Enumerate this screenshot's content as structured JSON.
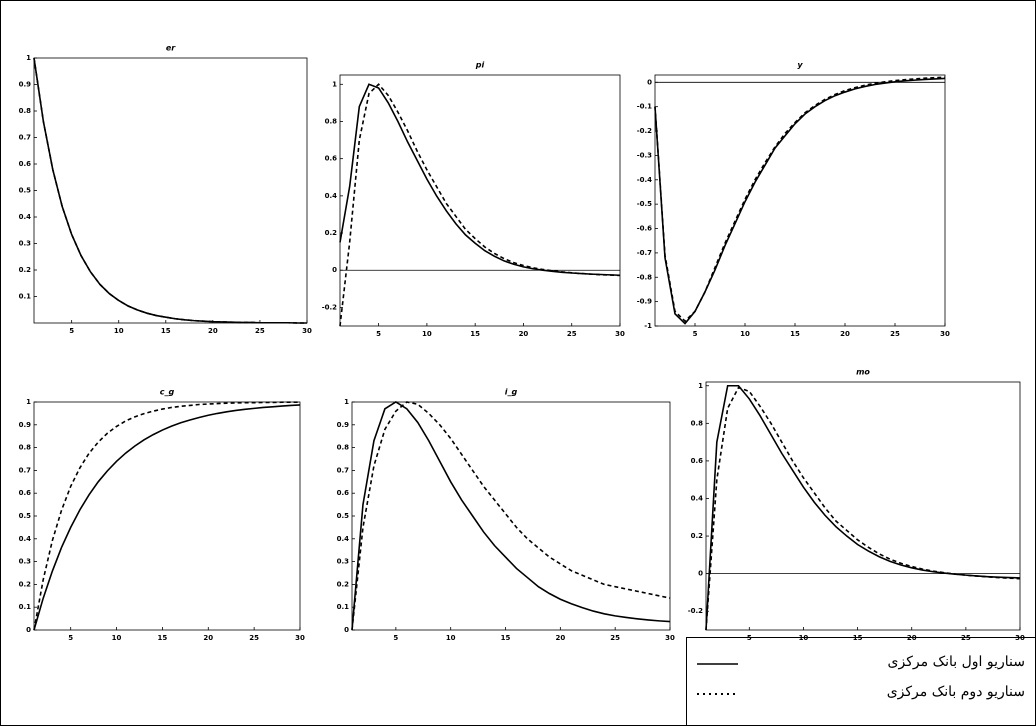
{
  "chart_data": [
    {
      "type": "line",
      "title": "er",
      "x": [
        1,
        2,
        3,
        4,
        5,
        6,
        7,
        8,
        9,
        10,
        11,
        12,
        13,
        14,
        15,
        16,
        17,
        18,
        19,
        20,
        21,
        22,
        23,
        24,
        25,
        26,
        27,
        28,
        29,
        30
      ],
      "xlim": [
        1,
        30
      ],
      "xticks": [
        5,
        10,
        15,
        20,
        25,
        30
      ],
      "ylim": [
        0,
        1
      ],
      "yticks": [
        0.1,
        0.2,
        0.3,
        0.4,
        0.5,
        0.6,
        0.7,
        0.8,
        0.9,
        1
      ],
      "series": [
        {
          "color": "#000000",
          "dashed": false,
          "values": [
            1,
            0.76,
            0.578,
            0.439,
            0.334,
            0.254,
            0.193,
            0.146,
            0.111,
            0.085,
            0.064,
            0.049,
            0.037,
            0.028,
            0.022,
            0.016,
            0.012,
            0.009,
            0.007,
            0.005,
            0.004,
            0.003,
            0.002,
            0.002,
            0.001,
            0.001,
            0.001,
            0.001,
            0,
            0
          ]
        },
        {
          "color": "#000000",
          "dashed": true,
          "values": [
            1,
            0.76,
            0.578,
            0.439,
            0.334,
            0.254,
            0.193,
            0.146,
            0.111,
            0.085,
            0.064,
            0.049,
            0.037,
            0.028,
            0.022,
            0.016,
            0.012,
            0.009,
            0.007,
            0.005,
            0.004,
            0.003,
            0.002,
            0.002,
            0.001,
            0.001,
            0.001,
            0.001,
            0,
            0
          ]
        }
      ]
    },
    {
      "type": "line",
      "title": "pi",
      "x": [
        1,
        2,
        3,
        4,
        5,
        6,
        7,
        8,
        9,
        10,
        11,
        12,
        13,
        14,
        15,
        16,
        17,
        18,
        19,
        20,
        21,
        22,
        23,
        24,
        25,
        26,
        27,
        28,
        29,
        30
      ],
      "xlim": [
        1,
        30
      ],
      "xticks": [
        5,
        10,
        15,
        20,
        25,
        30
      ],
      "ylim": [
        -0.3,
        1.05
      ],
      "yticks": [
        -0.2,
        0,
        0.2,
        0.4,
        0.6,
        0.8,
        1
      ],
      "series": [
        {
          "color": "#000000",
          "dashed": false,
          "values": [
            0.15,
            0.45,
            0.88,
            1,
            0.98,
            0.9,
            0.8,
            0.69,
            0.59,
            0.49,
            0.4,
            0.32,
            0.25,
            0.19,
            0.145,
            0.105,
            0.075,
            0.05,
            0.032,
            0.018,
            0.008,
            0,
            -0.006,
            -0.011,
            -0.015,
            -0.018,
            -0.021,
            -0.023,
            -0.025,
            -0.027
          ]
        },
        {
          "color": "#000000",
          "dashed": true,
          "values": [
            -0.3,
            0.15,
            0.7,
            0.95,
            1,
            0.94,
            0.85,
            0.75,
            0.64,
            0.54,
            0.45,
            0.36,
            0.29,
            0.22,
            0.17,
            0.125,
            0.09,
            0.062,
            0.041,
            0.025,
            0.013,
            0.004,
            -0.003,
            -0.009,
            -0.014,
            -0.018,
            -0.021,
            -0.024,
            -0.026,
            -0.028
          ]
        }
      ]
    },
    {
      "type": "line",
      "title": "y",
      "x": [
        1,
        2,
        3,
        4,
        5,
        6,
        7,
        8,
        9,
        10,
        11,
        12,
        13,
        14,
        15,
        16,
        17,
        18,
        19,
        20,
        21,
        22,
        23,
        24,
        25,
        26,
        27,
        28,
        29,
        30
      ],
      "xlim": [
        1,
        30
      ],
      "xticks": [
        5,
        10,
        15,
        20,
        25,
        30
      ],
      "ylim": [
        -1,
        0.03
      ],
      "yticks": [
        0,
        -0.1,
        -0.2,
        -0.3,
        -0.4,
        -0.5,
        -0.6,
        -0.7,
        -0.8,
        -0.9,
        -1
      ],
      "series": [
        {
          "color": "#000000",
          "dashed": false,
          "values": [
            -0.1,
            -0.72,
            -0.95,
            -0.99,
            -0.94,
            -0.86,
            -0.77,
            -0.67,
            -0.58,
            -0.49,
            -0.41,
            -0.34,
            -0.27,
            -0.22,
            -0.17,
            -0.13,
            -0.1,
            -0.075,
            -0.055,
            -0.04,
            -0.027,
            -0.017,
            -0.009,
            -0.003,
            0.002,
            0.006,
            0.009,
            0.012,
            0.014,
            0.016
          ]
        },
        {
          "color": "#000000",
          "dashed": true,
          "values": [
            -0.1,
            -0.71,
            -0.94,
            -0.98,
            -0.94,
            -0.86,
            -0.76,
            -0.66,
            -0.57,
            -0.48,
            -0.4,
            -0.33,
            -0.265,
            -0.21,
            -0.165,
            -0.125,
            -0.095,
            -0.07,
            -0.05,
            -0.034,
            -0.022,
            -0.012,
            -0.004,
            0.002,
            0.007,
            0.011,
            0.014,
            0.017,
            0.019,
            0.021
          ]
        }
      ]
    },
    {
      "type": "line",
      "title": "c_g",
      "x": [
        1,
        2,
        3,
        4,
        5,
        6,
        7,
        8,
        9,
        10,
        11,
        12,
        13,
        14,
        15,
        16,
        17,
        18,
        19,
        20,
        21,
        22,
        23,
        24,
        25,
        26,
        27,
        28,
        29,
        30
      ],
      "xlim": [
        1,
        30
      ],
      "xticks": [
        5,
        10,
        15,
        20,
        25,
        30
      ],
      "ylim": [
        0,
        1
      ],
      "yticks": [
        0,
        0.1,
        0.2,
        0.3,
        0.4,
        0.5,
        0.6,
        0.7,
        0.8,
        0.9,
        1
      ],
      "series": [
        {
          "color": "#000000",
          "dashed": false,
          "values": [
            0,
            0.139,
            0.258,
            0.362,
            0.45,
            0.527,
            0.593,
            0.65,
            0.698,
            0.74,
            0.776,
            0.807,
            0.834,
            0.857,
            0.877,
            0.894,
            0.909,
            0.921,
            0.932,
            0.942,
            0.95,
            0.957,
            0.963,
            0.968,
            0.972,
            0.976,
            0.979,
            0.982,
            0.985,
            0.987
          ]
        },
        {
          "color": "#000000",
          "dashed": true,
          "values": [
            0,
            0.22,
            0.392,
            0.525,
            0.63,
            0.711,
            0.775,
            0.824,
            0.863,
            0.893,
            0.917,
            0.935,
            0.949,
            0.96,
            0.969,
            0.976,
            0.981,
            0.985,
            0.989,
            0.991,
            0.993,
            0.995,
            0.996,
            0.997,
            0.997,
            0.998,
            0.998,
            0.999,
            0.999,
            0.999
          ]
        }
      ]
    },
    {
      "type": "line",
      "title": "i_g",
      "x": [
        1,
        2,
        3,
        4,
        5,
        6,
        7,
        8,
        9,
        10,
        11,
        12,
        13,
        14,
        15,
        16,
        17,
        18,
        19,
        20,
        21,
        22,
        23,
        24,
        25,
        26,
        27,
        28,
        29,
        30
      ],
      "xlim": [
        1,
        30
      ],
      "xticks": [
        5,
        10,
        15,
        20,
        25,
        30
      ],
      "ylim": [
        0,
        1
      ],
      "yticks": [
        0,
        0.1,
        0.2,
        0.3,
        0.4,
        0.5,
        0.6,
        0.7,
        0.8,
        0.9,
        1
      ],
      "series": [
        {
          "color": "#000000",
          "dashed": false,
          "values": [
            0,
            0.55,
            0.83,
            0.97,
            1,
            0.97,
            0.91,
            0.83,
            0.74,
            0.65,
            0.57,
            0.5,
            0.43,
            0.37,
            0.32,
            0.27,
            0.23,
            0.19,
            0.16,
            0.135,
            0.115,
            0.098,
            0.083,
            0.071,
            0.062,
            0.055,
            0.049,
            0.044,
            0.04,
            0.037
          ]
        },
        {
          "color": "#000000",
          "dashed": true,
          "values": [
            0,
            0.45,
            0.72,
            0.88,
            0.96,
            1,
            0.99,
            0.95,
            0.9,
            0.84,
            0.77,
            0.7,
            0.63,
            0.57,
            0.51,
            0.45,
            0.4,
            0.36,
            0.32,
            0.29,
            0.26,
            0.24,
            0.22,
            0.2,
            0.19,
            0.18,
            0.17,
            0.16,
            0.15,
            0.14
          ]
        }
      ]
    },
    {
      "type": "line",
      "title": "mo",
      "x": [
        1,
        2,
        3,
        4,
        5,
        6,
        7,
        8,
        9,
        10,
        11,
        12,
        13,
        14,
        15,
        16,
        17,
        18,
        19,
        20,
        21,
        22,
        23,
        24,
        25,
        26,
        27,
        28,
        29,
        30
      ],
      "xlim": [
        1,
        30
      ],
      "xticks": [
        5,
        10,
        15,
        20,
        25,
        30
      ],
      "ylim": [
        -0.3,
        1.02
      ],
      "yticks": [
        -0.2,
        0,
        0.2,
        0.4,
        0.6,
        0.8,
        1
      ],
      "series": [
        {
          "color": "#000000",
          "dashed": false,
          "values": [
            -0.3,
            0.7,
            1,
            1,
            0.93,
            0.84,
            0.74,
            0.64,
            0.55,
            0.46,
            0.38,
            0.31,
            0.25,
            0.2,
            0.155,
            0.12,
            0.09,
            0.065,
            0.046,
            0.031,
            0.019,
            0.01,
            0.003,
            -0.003,
            -0.008,
            -0.012,
            -0.016,
            -0.019,
            -0.021,
            -0.023
          ]
        },
        {
          "color": "#000000",
          "dashed": true,
          "values": [
            -0.3,
            0.5,
            0.88,
            0.99,
            0.97,
            0.89,
            0.8,
            0.7,
            0.6,
            0.51,
            0.43,
            0.35,
            0.28,
            0.23,
            0.18,
            0.14,
            0.105,
            0.077,
            0.055,
            0.038,
            0.024,
            0.013,
            0.005,
            -0.002,
            -0.008,
            -0.013,
            -0.017,
            -0.021,
            -0.024,
            -0.027
          ]
        }
      ]
    }
  ],
  "legend": [
    {
      "label": "سناریو اول بانک مرکزی",
      "dashed": false
    },
    {
      "label": "سناریو دوم بانک مرکزی",
      "dashed": true
    }
  ]
}
